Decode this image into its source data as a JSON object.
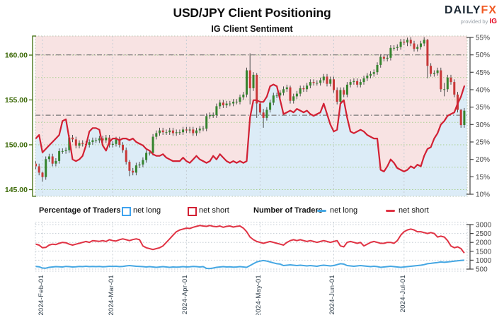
{
  "header": {
    "title": "USD/JPY Client Positioning",
    "subtitle": "IG Client Sentiment",
    "logo": {
      "brand_daily": "DAILY",
      "brand_fx": "FX",
      "provided_by": "provided by",
      "provider": "IG"
    }
  },
  "legend": {
    "percentage_title": "Percentage of Traders",
    "pct_net_long": "net long",
    "pct_net_short": "net short",
    "number_title": "Number of Traders",
    "num_net_long": "net long",
    "num_net_short": "net short"
  },
  "colors": {
    "pink_fill": "#f8e3e3",
    "blue_fill": "#dcecf7",
    "net_short_line": "#d22033",
    "net_long_line": "#45a7e3",
    "bottom_net_short_line": "#e03344",
    "candle_up": "#35842e",
    "candle_down": "#c83737",
    "wick": "#4d4d4d",
    "price_axis": "#3e6b0a",
    "percent_axis": "#444444",
    "grid_green": "#a8cf8e",
    "grid_gray": "#c5cdd4",
    "border_dotted": "#b9c6b0",
    "reference": "#777777",
    "legend_long_box": "#3fa3ef",
    "legend_short_box": "#d22033"
  },
  "chart_data": {
    "type": "mixed",
    "title": "USD/JPY Client Positioning",
    "subtitle": "IG Client Sentiment",
    "x_labels": [
      "2024-Feb-01",
      "2024-Mar-01",
      "2024-Apr-01",
      "2024-May-01",
      "2024-Jun-01",
      "2024-Jul-01"
    ],
    "x_label_day_index": [
      2,
      23,
      45,
      67,
      89,
      110
    ],
    "main_chart": {
      "description": "Daily USD/JPY candlesticks with IG client net-short percentage line; pink fill above the net-short line, light blue below",
      "price_axis": {
        "side": "left",
        "ticks": [
          160,
          155,
          150,
          145
        ],
        "range": [
          144.25,
          162.1
        ]
      },
      "percent_axis": {
        "side": "right",
        "ticks": [
          "55%",
          "50%",
          "45%",
          "40%",
          "35%",
          "30%",
          "25%",
          "20%",
          "15%",
          "10%"
        ],
        "tick_values": [
          55,
          50,
          45,
          40,
          35,
          30,
          25,
          20,
          15,
          10
        ],
        "range": [
          9.6,
          55.4
        ]
      },
      "reference_lines": {
        "percent": 50,
        "price": 153.3
      },
      "price_closes": [
        147.6,
        146.9,
        146.4,
        148.4,
        148.7,
        147.9,
        148.2,
        149.3,
        149.3,
        149.4,
        150.8,
        150.6,
        149.9,
        150.2,
        150.1,
        150.0,
        150.3,
        150.5,
        150.5,
        150.7,
        150.5,
        150.8,
        150.0,
        150.1,
        150.6,
        150.0,
        149.4,
        148.1,
        147.1,
        146.9,
        147.7,
        147.8,
        148.3,
        149.1,
        149.1,
        150.9,
        151.3,
        151.6,
        151.4,
        151.4,
        151.6,
        151.3,
        151.4,
        151.4,
        151.7,
        151.6,
        151.7,
        151.3,
        151.6,
        151.8,
        151.8,
        153.2,
        153.3,
        153.3,
        154.3,
        154.7,
        154.4,
        154.6,
        154.6,
        154.8,
        154.8,
        155.3,
        155.6,
        158.3,
        156.3,
        157.8,
        154.6,
        153.6,
        153.0,
        153.9,
        154.7,
        155.5,
        155.5,
        155.8,
        156.2,
        156.4,
        154.9,
        155.4,
        155.7,
        156.3,
        156.2,
        156.6,
        157.0,
        156.9,
        156.9,
        157.2,
        157.6,
        156.8,
        157.3,
        156.1,
        154.8,
        156.1,
        155.6,
        156.7,
        157.0,
        157.1,
        156.7,
        157.0,
        157.4,
        157.7,
        157.9,
        158.1,
        158.9,
        159.8,
        159.6,
        159.7,
        160.8,
        160.8,
        160.9,
        161.5,
        161.4,
        161.7,
        161.3,
        160.7,
        160.9,
        161.3,
        161.7,
        158.8,
        157.9,
        158.0,
        158.3,
        156.2,
        156.2,
        157.5,
        157.0,
        155.6,
        153.9,
        152.2,
        153.8
      ],
      "first_open": 147.9,
      "wick_overrides": {
        "2": [
          147.0,
          145.9
        ],
        "28": [
          148.3,
          146.5
        ],
        "64": [
          160.2,
          154.5
        ],
        "66": [
          158.0,
          153.0
        ],
        "68": [
          154.0,
          151.9
        ],
        "76": [
          156.6,
          154.6
        ],
        "111": [
          161.95,
          161.0
        ],
        "117": [
          161.8,
          157.4
        ],
        "122": [
          156.9,
          155.4
        ],
        "127": [
          154.0,
          151.9
        ]
      },
      "net_short_percent": [
        26,
        27,
        22,
        23,
        24,
        25,
        26,
        27,
        31,
        31.5,
        26,
        20,
        19.5,
        20,
        21,
        24,
        28,
        29,
        29,
        28.5,
        24,
        22.5,
        25,
        26,
        26,
        25.5,
        26,
        26,
        25.5,
        26,
        25,
        24.5,
        24,
        23,
        22.5,
        21.5,
        21,
        21,
        21.5,
        20.5,
        20,
        19.5,
        19.5,
        19.5,
        20.5,
        19.5,
        19,
        20,
        21,
        20,
        19.5,
        19,
        19.5,
        21,
        20,
        21.5,
        20.5,
        19.5,
        19,
        19.5,
        19,
        19.5,
        19,
        19.5,
        32,
        37,
        37,
        36.5,
        36.5,
        38,
        41,
        41.5,
        41,
        37,
        33,
        33.5,
        34,
        33.5,
        34.5,
        34,
        33.5,
        34,
        33,
        32.5,
        33,
        33.5,
        36,
        33,
        30,
        28,
        28.5,
        36,
        37,
        32,
        28,
        27.5,
        28,
        28.5,
        28,
        27,
        26.5,
        26,
        26,
        17,
        16.5,
        18,
        20,
        19,
        17.5,
        17,
        16.5,
        17,
        18,
        17.5,
        18.5,
        18,
        21,
        23,
        23.5,
        26,
        27.5,
        30,
        31,
        32.5,
        33,
        33.5,
        36,
        38,
        41
      ]
    },
    "bottom_chart": {
      "description": "Number of traders: net short (red) and net long (blue)",
      "count_axis": {
        "side": "right",
        "ticks": [
          3000,
          2500,
          2000,
          1500,
          1000,
          500
        ],
        "range": [
          400,
          3140
        ]
      },
      "net_short_count": [
        1900,
        1850,
        1700,
        1720,
        1850,
        1900,
        1880,
        1950,
        2000,
        1980,
        1900,
        1850,
        1900,
        1950,
        2000,
        2050,
        2000,
        2100,
        2080,
        2060,
        2100,
        2050,
        2150,
        2100,
        2080,
        2150,
        2200,
        2150,
        2100,
        2160,
        2200,
        2150,
        1800,
        1700,
        1650,
        1600,
        1650,
        1700,
        1800,
        2000,
        2200,
        2400,
        2600,
        2700,
        2750,
        2800,
        2780,
        2850,
        2900,
        2950,
        2920,
        2900,
        2950,
        2900,
        2880,
        2920,
        2850,
        2900,
        2920,
        2860,
        2900,
        2920,
        2800,
        2600,
        2300,
        2150,
        2050,
        2000,
        1950,
        2000,
        2050,
        2000,
        1950,
        1900,
        1850,
        2000,
        2100,
        2150,
        2100,
        2150,
        2100,
        2050,
        2100,
        2050,
        2000,
        2050,
        2100,
        2050,
        2000,
        2050,
        2100,
        1800,
        1750,
        2000,
        2050,
        2000,
        1950,
        2000,
        1800,
        1900,
        2000,
        2050,
        2000,
        1950,
        1950,
        2000,
        2000,
        1950,
        2100,
        2400,
        2600,
        2700,
        2750,
        2700,
        2600,
        2600,
        2550,
        2500,
        2550,
        2500,
        2300,
        2350,
        2300,
        2100,
        1800,
        1700,
        1750,
        1650,
        1400
      ],
      "net_long_count": [
        650,
        630,
        560,
        550,
        600,
        620,
        640,
        630,
        620,
        650,
        640,
        620,
        630,
        650,
        640,
        660,
        640,
        650,
        640,
        650,
        630,
        640,
        660,
        650,
        660,
        640,
        650,
        680,
        700,
        680,
        660,
        650,
        640,
        620,
        640,
        620,
        600,
        620,
        640,
        620,
        600,
        620,
        610,
        620,
        640,
        620,
        630,
        650,
        640,
        620,
        640,
        540,
        530,
        560,
        600,
        620,
        640,
        620,
        630,
        610,
        620,
        640,
        620,
        600,
        700,
        800,
        900,
        950,
        980,
        950,
        900,
        850,
        800,
        780,
        700,
        720,
        740,
        720,
        700,
        720,
        700,
        680,
        700,
        680,
        660,
        700,
        720,
        700,
        680,
        700,
        750,
        800,
        780,
        700,
        680,
        660,
        680,
        700,
        680,
        660,
        640,
        660,
        640,
        600,
        620,
        640,
        660,
        640,
        620,
        600,
        620,
        640,
        660,
        680,
        700,
        720,
        750,
        800,
        820,
        850,
        870,
        900,
        880,
        900,
        920,
        950,
        970,
        990,
        1000
      ]
    }
  }
}
